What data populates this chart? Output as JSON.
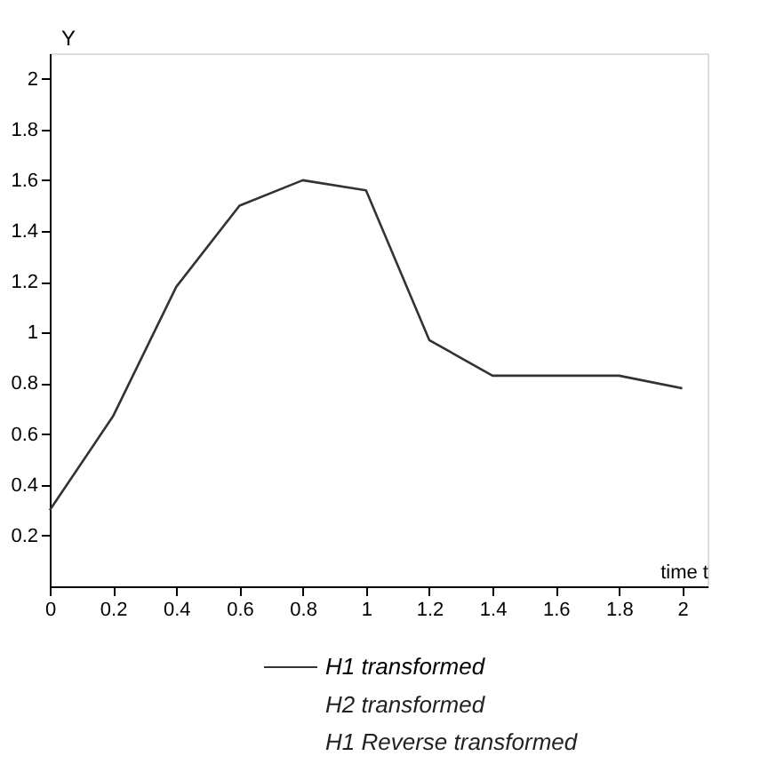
{
  "chart_data": {
    "type": "line",
    "xlabel": "time t",
    "ylabel": "Y",
    "x": [
      0,
      0.2,
      0.4,
      0.6,
      0.8,
      1.0,
      1.2,
      1.4,
      1.6,
      1.8,
      2.0
    ],
    "series": [
      {
        "name": "H1 transformed",
        "color": "#333333",
        "values": [
          0.3,
          0.67,
          1.18,
          1.5,
          1.6,
          1.56,
          0.97,
          0.83,
          0.83,
          0.83,
          0.78
        ]
      }
    ],
    "xlim": [
      0,
      2.08
    ],
    "ylim": [
      0,
      2.1
    ],
    "xticks": [
      0,
      0.2,
      0.4,
      0.6,
      0.8,
      1,
      1.2,
      1.4,
      1.6,
      1.8,
      2
    ],
    "yticks": [
      0.2,
      0.4,
      0.6,
      0.8,
      1,
      1.2,
      1.4,
      1.6,
      1.8,
      2
    ],
    "legend": "bottom",
    "grid": false,
    "marker": "none",
    "line_style": "solid",
    "annotations": [
      "H2 transformed",
      "H1 Reverse transformed"
    ]
  }
}
